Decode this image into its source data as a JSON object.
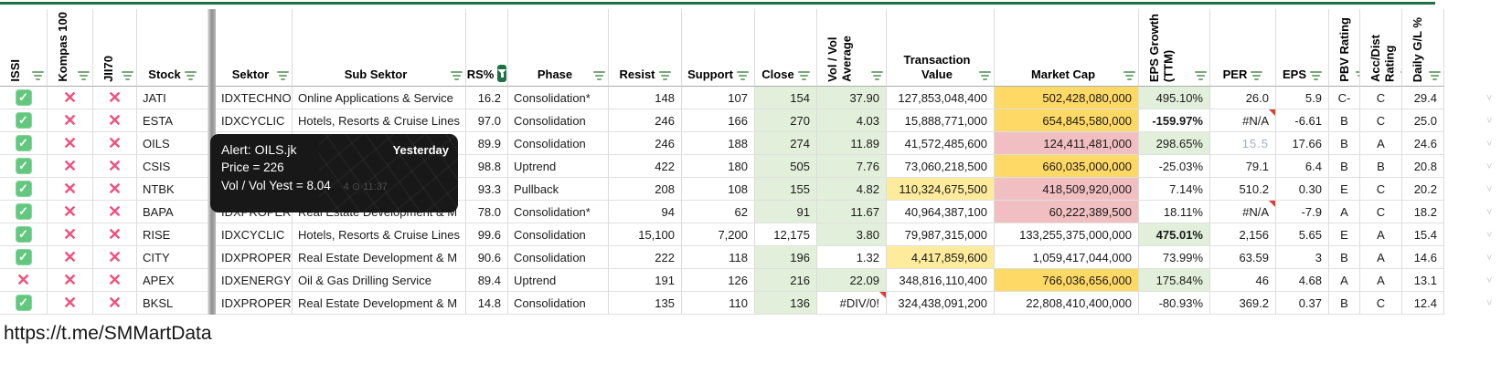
{
  "colors": {
    "accent_green": "#1f7145",
    "green_bg": "#e2efda",
    "yellow_bg": "#ffd966",
    "yellow_light_bg": "#ffeb9c",
    "pink_bg": "#f1bfc1",
    "check_green": "#62c87e",
    "x_red": "#f1507c",
    "filter_green": "#7aa87a",
    "muted_blue": "#9fb0c6",
    "note_red": "#e03c31"
  },
  "header": {
    "issi": "ISSI",
    "kompas": "Kompas 100",
    "jii70": "JII70",
    "stock": "Stock",
    "sektor": "Sektor",
    "sub_sektor": "Sub Sektor",
    "rs": "RS%",
    "phase": "Phase",
    "resist": "Resist",
    "support": "Support",
    "close": "Close",
    "vol": "Vol / Vol\nAverage",
    "tv": "Transaction\nValue",
    "mc": "Market Cap",
    "eps_growth": "EPS Growth\n(TTM)",
    "per": "PER",
    "eps": "EPS",
    "pbv": "PBV Rating",
    "acc": "Acc/Dist\nRating",
    "daily": "Daily G/L %"
  },
  "tooltip": {
    "title": "Alert: OILS.jk",
    "badge": "Yesterday",
    "price_line": "Price = 226",
    "vol_line": "Vol / Vol Yest = 8.04",
    "views": "4",
    "time": "11:37"
  },
  "footer_url": "https://t.me/SMMartData",
  "rows": [
    {
      "issi": "check",
      "kompas": "x",
      "jii70": "x",
      "stock": "JATI",
      "sektor": "IDXTECHNO",
      "sub_sektor": "Online Applications & Service",
      "rs": "16.2",
      "phase": "Consolidation*",
      "resist": "148",
      "support": "107",
      "close": "154",
      "close_bg": "green",
      "vol": "37.90",
      "vol_bg": "green",
      "tv": "127,853,048,400",
      "mc": "502,428,080,000",
      "mc_bg": "yellow",
      "eps_growth": "495.10%",
      "epsg_bg": "green",
      "per": "26.0",
      "eps": "5.9",
      "pbv": "C-",
      "acc": "C",
      "daily": "29.4"
    },
    {
      "issi": "check",
      "kompas": "x",
      "jii70": "x",
      "stock": "ESTA",
      "sektor": "IDXCYCLIC",
      "sub_sektor": "Hotels, Resorts & Cruise Lines",
      "rs": "97.0",
      "phase": "Consolidation",
      "resist": "246",
      "support": "166",
      "close": "270",
      "close_bg": "green",
      "vol": "4.03",
      "vol_bg": "green",
      "tv": "15,888,771,000",
      "mc": "654,845,580,000",
      "mc_bg": "yellow",
      "eps_growth": "-159.97%",
      "epsg_bold": true,
      "per": "#N/A",
      "per_note": true,
      "eps": "-6.61",
      "pbv": "B",
      "acc": "C",
      "daily": "25.0"
    },
    {
      "issi": "check",
      "kompas": "x",
      "jii70": "x",
      "stock": "OILS",
      "sektor": "",
      "sub_sektor": "",
      "rs": "89.9",
      "phase": "Consolidation",
      "resist": "246",
      "support": "188",
      "close": "274",
      "close_bg": "green",
      "vol": "11.89",
      "vol_bg": "green",
      "tv": "41,572,485,600",
      "mc": "124,411,481,000",
      "mc_bg": "pink",
      "eps_growth": "298.65%",
      "epsg_bg": "green",
      "per": "15.5",
      "per_muted": true,
      "eps": "17.66",
      "pbv": "B",
      "acc": "A",
      "daily": "24.6"
    },
    {
      "issi": "check",
      "kompas": "x",
      "jii70": "x",
      "stock": "CSIS",
      "sektor": "",
      "sub_sektor": "",
      "rs": "98.8",
      "phase": "Uptrend",
      "resist": "422",
      "support": "180",
      "close": "505",
      "close_bg": "green",
      "vol": "7.76",
      "vol_bg": "green",
      "tv": "73,060,218,500",
      "mc": "660,035,000,000",
      "mc_bg": "yellow",
      "eps_growth": "-25.03%",
      "per": "79.1",
      "eps": "6.4",
      "pbv": "B",
      "acc": "B",
      "daily": "20.8"
    },
    {
      "issi": "check",
      "kompas": "x",
      "jii70": "x",
      "stock": "NTBK",
      "sektor": "",
      "sub_sektor": "",
      "rs": "93.3",
      "phase": "Pullback",
      "resist": "208",
      "support": "108",
      "close": "155",
      "close_bg": "green",
      "vol": "4.82",
      "vol_bg": "green",
      "tv": "110,324,675,500",
      "tv_bg": "yellow_light",
      "mc": "418,509,920,000",
      "mc_bg": "pink",
      "eps_growth": "7.14%",
      "per": "510.2",
      "eps": "0.30",
      "pbv": "E",
      "acc": "C",
      "daily": "20.2"
    },
    {
      "issi": "check",
      "kompas": "x",
      "jii70": "x",
      "stock": "BAPA",
      "sektor": "IDXPROPERT",
      "sub_sektor": "Real Estate Development & M",
      "rs": "78.0",
      "phase": "Consolidation*",
      "resist": "94",
      "support": "62",
      "close": "91",
      "close_bg": "green",
      "vol": "11.67",
      "vol_bg": "green",
      "tv": "40,964,387,100",
      "mc": "60,222,389,500",
      "mc_bg": "pink",
      "eps_growth": "18.11%",
      "per": "#N/A",
      "per_note": true,
      "eps": "-7.9",
      "pbv": "A",
      "acc": "C",
      "daily": "18.2"
    },
    {
      "issi": "check",
      "kompas": "x",
      "jii70": "x",
      "stock": "RISE",
      "sektor": "IDXCYCLIC",
      "sub_sektor": "Hotels, Resorts & Cruise Lines",
      "rs": "99.6",
      "phase": "Consolidation",
      "resist": "15,100",
      "support": "7,200",
      "close": "12,175",
      "vol": "3.80",
      "vol_bg": "green",
      "tv": "79,987,315,000",
      "mc": "133,255,375,000,000",
      "eps_growth": "475.01%",
      "epsg_bg": "green",
      "epsg_bold": true,
      "per": "2,156",
      "eps": "5.65",
      "pbv": "E",
      "acc": "A",
      "daily": "15.4"
    },
    {
      "issi": "check",
      "kompas": "x",
      "jii70": "x",
      "stock": "CITY",
      "sektor": "IDXPROPERT",
      "sub_sektor": "Real Estate Development & M",
      "rs": "90.6",
      "phase": "Consolidation",
      "resist": "222",
      "support": "118",
      "close": "196",
      "close_bg": "green",
      "vol": "1.32",
      "tv": "4,417,859,600",
      "tv_bg": "yellow_light",
      "mc": "1,059,417,044,000",
      "eps_growth": "73.99%",
      "per": "63.59",
      "eps": "3",
      "pbv": "B",
      "acc": "A",
      "daily": "14.6"
    },
    {
      "issi": "x",
      "kompas": "x",
      "jii70": "x",
      "stock": "APEX",
      "sektor": "IDXENERGY",
      "sub_sektor": "Oil & Gas Drilling Service",
      "rs": "89.4",
      "phase": "Uptrend",
      "resist": "191",
      "support": "126",
      "close": "216",
      "close_bg": "green",
      "vol": "22.09",
      "vol_bg": "green",
      "tv": "348,816,110,400",
      "mc": "766,036,656,000",
      "mc_bg": "yellow",
      "eps_growth": "175.84%",
      "epsg_bg": "green",
      "per": "46",
      "eps": "4.68",
      "pbv": "A",
      "acc": "A",
      "daily": "13.1"
    },
    {
      "issi": "check",
      "kompas": "x",
      "jii70": "x",
      "stock": "BKSL",
      "sektor": "IDXPROPERT",
      "sub_sektor": "Real Estate Development & M",
      "rs": "14.8",
      "phase": "Consolidation",
      "resist": "135",
      "support": "110",
      "close": "136",
      "close_bg": "green",
      "vol": "#DIV/0!",
      "vol_note": true,
      "tv": "324,438,091,200",
      "mc": "22,808,410,400,000",
      "eps_growth": "-80.93%",
      "per": "369.2",
      "eps": "0.37",
      "pbv": "B",
      "acc": "C",
      "daily": "12.4"
    }
  ]
}
